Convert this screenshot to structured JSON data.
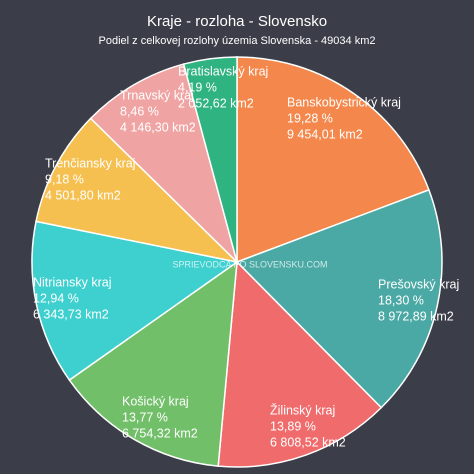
{
  "chart_data": {
    "type": "pie",
    "title": "Kraje - rozloha - Slovensko",
    "subtitle": "Podiel z celkovej rozlohy územia Slovenska - 49034 km2",
    "watermark": "SPRIEVODCA PO SLOVENSKU.COM",
    "categories": [
      "Banskobystrický kraj",
      "Prešovský kraj",
      "Žilinský kraj",
      "Košický kraj",
      "Nitriansky kraj",
      "Trenčiansky kraj",
      "Trnavský kraj",
      "Bratislavský kraj"
    ],
    "values": [
      19.28,
      18.3,
      13.89,
      13.77,
      12.94,
      9.18,
      8.46,
      4.19
    ],
    "value_labels": [
      "19,28 %",
      "18,30 %",
      "13,89 %",
      "13,77 %",
      "12,94 %",
      "9,18 %",
      "8,46 %",
      "4,19 %"
    ],
    "areas": [
      {
        "value": 9454.01,
        "label": "9 454,01 km2"
      },
      {
        "value": 8972.89,
        "label": "8 972,89 km2"
      },
      {
        "value": 6808.52,
        "label": "6 808,52 km2"
      },
      {
        "value": 6754.32,
        "label": "6 754,32 km2"
      },
      {
        "value": 6343.73,
        "label": "6 343,73 km2"
      },
      {
        "value": 4501.8,
        "label": "4 501,80 km2"
      },
      {
        "value": 4146.3,
        "label": "4 146,30 km2"
      },
      {
        "value": 2052.62,
        "label": "2 052,62 km2"
      }
    ],
    "colors": [
      "#f4874b",
      "#4aa9a4",
      "#f06b6b",
      "#72bf6a",
      "#3ecfcf",
      "#f5c050",
      "#f0a3a3",
      "#2fb380"
    ]
  }
}
